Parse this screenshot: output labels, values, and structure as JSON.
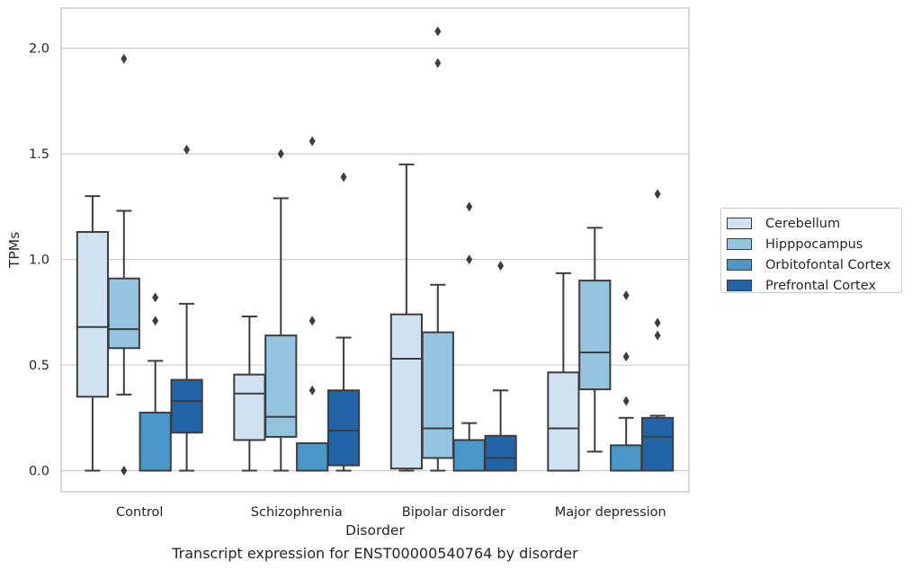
{
  "chart_data": {
    "type": "boxplot",
    "xlabel": "Disorder",
    "ylabel": "TPMs",
    "caption": "Transcript expression for ENST00000540764 by disorder",
    "ylim": [
      -0.1,
      2.19
    ],
    "yticks": [
      0.0,
      0.5,
      1.0,
      1.5,
      2.0
    ],
    "ytick_labels": [
      "0.0",
      "0.5",
      "1.0",
      "1.5",
      "2.0"
    ],
    "grid": true,
    "legend_position": "right-center",
    "categories": [
      "Control",
      "Schizophrenia",
      "Bipolar disorder",
      "Major depression"
    ],
    "series": [
      {
        "name": "Cerebellum",
        "color": "#d0e1f2",
        "boxes": [
          {
            "whisker_low": 0.0,
            "q1": 0.35,
            "median": 0.68,
            "q3": 1.13,
            "whisker_high": 1.3,
            "outliers": []
          },
          {
            "whisker_low": 0.0,
            "q1": 0.145,
            "median": 0.365,
            "q3": 0.455,
            "whisker_high": 0.73,
            "outliers": []
          },
          {
            "whisker_low": 0.0,
            "q1": 0.01,
            "median": 0.53,
            "q3": 0.74,
            "whisker_high": 1.45,
            "outliers": []
          },
          {
            "whisker_low": 0.0,
            "q1": 0.0,
            "median": 0.2,
            "q3": 0.465,
            "whisker_high": 0.935,
            "outliers": []
          }
        ]
      },
      {
        "name": "Hipppocampus",
        "color": "#94c4df",
        "boxes": [
          {
            "whisker_low": 0.36,
            "q1": 0.58,
            "median": 0.67,
            "q3": 0.91,
            "whisker_high": 1.23,
            "outliers": [
              0.0,
              1.95
            ]
          },
          {
            "whisker_low": 0.0,
            "q1": 0.16,
            "median": 0.255,
            "q3": 0.64,
            "whisker_high": 1.29,
            "outliers": [
              1.5
            ]
          },
          {
            "whisker_low": 0.0,
            "q1": 0.06,
            "median": 0.2,
            "q3": 0.655,
            "whisker_high": 0.88,
            "outliers": [
              1.93,
              2.08
            ]
          },
          {
            "whisker_low": 0.09,
            "q1": 0.385,
            "median": 0.56,
            "q3": 0.9,
            "whisker_high": 1.15,
            "outliers": []
          }
        ]
      },
      {
        "name": "Orbitofontal Cortex",
        "color": "#4a98c9",
        "boxes": [
          {
            "whisker_low": 0.0,
            "q1": 0.0,
            "median": 0.0,
            "q3": 0.275,
            "whisker_high": 0.52,
            "outliers": [
              0.71,
              0.82
            ]
          },
          {
            "whisker_low": 0.0,
            "q1": 0.0,
            "median": 0.0,
            "q3": 0.13,
            "whisker_high": 0.13,
            "outliers": [
              0.38,
              0.71,
              1.56
            ]
          },
          {
            "whisker_low": 0.0,
            "q1": 0.0,
            "median": 0.0,
            "q3": 0.145,
            "whisker_high": 0.225,
            "outliers": [
              1.0,
              1.25
            ]
          },
          {
            "whisker_low": 0.0,
            "q1": 0.0,
            "median": 0.0,
            "q3": 0.12,
            "whisker_high": 0.25,
            "outliers": [
              0.33,
              0.54,
              0.83
            ]
          }
        ]
      },
      {
        "name": "Prefrontal Cortex",
        "color": "#2264a8",
        "boxes": [
          {
            "whisker_low": 0.0,
            "q1": 0.18,
            "median": 0.33,
            "q3": 0.43,
            "whisker_high": 0.79,
            "outliers": [
              1.52
            ]
          },
          {
            "whisker_low": 0.0,
            "q1": 0.025,
            "median": 0.19,
            "q3": 0.38,
            "whisker_high": 0.63,
            "outliers": [
              1.39
            ]
          },
          {
            "whisker_low": 0.0,
            "q1": 0.0,
            "median": 0.06,
            "q3": 0.165,
            "whisker_high": 0.38,
            "outliers": [
              0.97
            ]
          },
          {
            "whisker_low": 0.0,
            "q1": 0.0,
            "median": 0.16,
            "q3": 0.25,
            "whisker_high": 0.26,
            "outliers": [
              0.64,
              0.7,
              1.31
            ]
          }
        ]
      }
    ]
  }
}
